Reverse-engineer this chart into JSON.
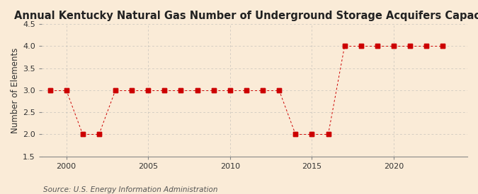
{
  "title": "Annual Kentucky Natural Gas Number of Underground Storage Acquifers Capacity",
  "ylabel": "Number of Elements",
  "source": "Source: U.S. Energy Information Administration",
  "background_color": "#faebd7",
  "years": [
    1999,
    2000,
    2001,
    2002,
    2003,
    2004,
    2005,
    2006,
    2007,
    2008,
    2009,
    2010,
    2011,
    2012,
    2013,
    2014,
    2015,
    2016,
    2017,
    2018,
    2019,
    2020,
    2021,
    2022,
    2023
  ],
  "values": [
    3,
    3,
    2,
    2,
    3,
    3,
    3,
    3,
    3,
    3,
    3,
    3,
    3,
    3,
    3,
    2,
    2,
    2,
    4,
    4,
    4,
    4,
    4,
    4,
    4
  ],
  "marker_color": "#cc0000",
  "line_color": "#cc0000",
  "grid_color": "#b0b0b0",
  "ylim": [
    1.5,
    4.5
  ],
  "yticks": [
    1.5,
    2.0,
    2.5,
    3.0,
    3.5,
    4.0,
    4.5
  ],
  "xtick_major": [
    2000,
    2005,
    2010,
    2015,
    2020
  ],
  "xlim": [
    1998.5,
    2024.5
  ],
  "title_fontsize": 10.5,
  "ylabel_fontsize": 8.5,
  "source_fontsize": 7.5
}
